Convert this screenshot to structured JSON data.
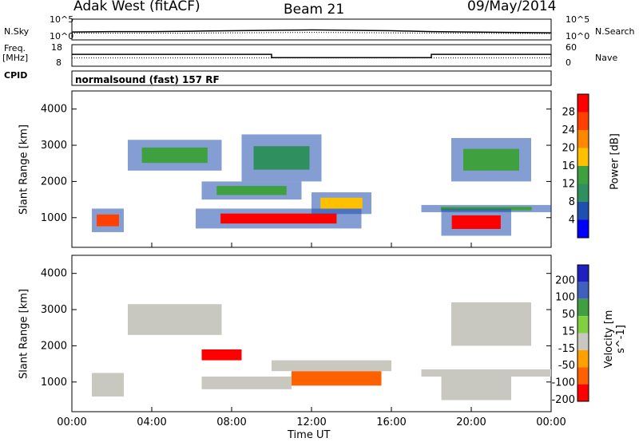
{
  "header": {
    "station": "Adak West (fitACF)",
    "beam": "Beam 21",
    "date": "09/May/2014"
  },
  "left_labels": {
    "nsky": "N.Sky",
    "freq": "Freq.",
    "freq_unit": "[MHz]",
    "cpid": "CPID"
  },
  "right_labels": {
    "nsearch": "N.Search",
    "nave": "Nave"
  },
  "noise_axis": {
    "left_top": "10^5",
    "left_bottom": "10^0",
    "right_top": "10^5",
    "right_bottom": "10^0"
  },
  "freq_axis": {
    "left_top": "18",
    "left_bottom": "8",
    "right_top": "60",
    "right_bottom": "0"
  },
  "cpid_text": "normalsound (fast) 157 RF",
  "x_axis": {
    "label": "Time UT",
    "ticks": [
      "00:00",
      "04:00",
      "08:00",
      "12:00",
      "16:00",
      "20:00",
      "00:00"
    ]
  },
  "colors": {
    "power": [
      "#0000ff",
      "#1f4fb0",
      "#2f8f5f",
      "#3fa03f",
      "#ffc000",
      "#ff8800",
      "#ff4000",
      "#ff0000"
    ],
    "velocity": [
      "#2020c0",
      "#4060c0",
      "#40a040",
      "#80d040",
      "#c8c8c0",
      "#ffa000",
      "#ff6000",
      "#ff0000"
    ]
  },
  "chart_data": [
    {
      "type": "line",
      "panel": "noise",
      "ylabel_left": "N.Sky",
      "ylabel_right": "N.Search",
      "x_unit": "hours UT",
      "xlim": [
        0,
        24
      ],
      "ylim": [
        0,
        5
      ],
      "series": [
        {
          "name": "N.Sky",
          "x": [
            0,
            2,
            4,
            6,
            8,
            10,
            12,
            14,
            16,
            18,
            20,
            22,
            24
          ],
          "values": [
            1.9,
            2.0,
            2.0,
            2.1,
            2.2,
            2.3,
            2.4,
            2.3,
            2.2,
            2.0,
            1.9,
            1.8,
            1.7
          ]
        },
        {
          "name": "N.Search",
          "x": [
            0,
            4,
            8,
            12,
            16,
            20,
            24
          ],
          "values": [
            1.6,
            1.6,
            1.7,
            1.8,
            1.7,
            1.6,
            1.5
          ]
        }
      ]
    },
    {
      "type": "line",
      "panel": "frequency",
      "ylabel_left": "Freq. [MHz]",
      "ylabel_right": "Nave",
      "x_unit": "hours UT",
      "xlim": [
        0,
        24
      ],
      "ylim_left": [
        8,
        18
      ],
      "ylim_right": [
        0,
        60
      ],
      "series": [
        {
          "name": "Freq.",
          "x": [
            0,
            10,
            10,
            18,
            18,
            24
          ],
          "values": [
            13.5,
            13.5,
            12.0,
            12.0,
            13.5,
            13.5
          ]
        },
        {
          "name": "Nave",
          "x": [
            0,
            24
          ],
          "values": [
            23,
            23
          ]
        }
      ]
    },
    {
      "type": "heatmap",
      "panel": "power",
      "xlabel": "",
      "ylabel": "Slant Range [km]",
      "colorbar_label": "Power [dB]",
      "colorbar_ticks": [
        4,
        8,
        12,
        16,
        20,
        24,
        28
      ],
      "xlim": [
        0,
        24
      ],
      "ylim": [
        180,
        4500
      ],
      "y_ticks": [
        1000,
        2000,
        3000,
        4000
      ],
      "regions": [
        {
          "t0": 1.0,
          "t1": 2.6,
          "r0": 600,
          "r1": 1250,
          "peak_dB": 26
        },
        {
          "t0": 2.8,
          "t1": 7.5,
          "r0": 2300,
          "r1": 3150,
          "peak_dB": 12
        },
        {
          "t0": 6.2,
          "t1": 14.5,
          "r0": 700,
          "r1": 1250,
          "peak_dB": 28
        },
        {
          "t0": 6.5,
          "t1": 11.5,
          "r0": 1500,
          "r1": 2000,
          "peak_dB": 14
        },
        {
          "t0": 8.5,
          "t1": 12.5,
          "r0": 2000,
          "r1": 3300,
          "peak_dB": 8
        },
        {
          "t0": 12.0,
          "t1": 15.0,
          "r0": 1100,
          "r1": 1700,
          "peak_dB": 16
        },
        {
          "t0": 17.5,
          "t1": 24.0,
          "r0": 1150,
          "r1": 1350,
          "peak_dB": 12
        },
        {
          "t0": 18.5,
          "t1": 22.0,
          "r0": 500,
          "r1": 1250,
          "peak_dB": 28
        },
        {
          "t0": 19.0,
          "t1": 23.0,
          "r0": 2000,
          "r1": 3200,
          "peak_dB": 12
        }
      ]
    },
    {
      "type": "heatmap",
      "panel": "velocity",
      "xlabel": "Time UT",
      "ylabel": "Slant Range [km]",
      "colorbar_label": "Velocity [m s^-1]",
      "colorbar_ticks": [
        200,
        100,
        50,
        15,
        -15,
        -50,
        -100,
        -200
      ],
      "xlim": [
        0,
        24
      ],
      "ylim": [
        180,
        4500
      ],
      "y_ticks": [
        1000,
        2000,
        3000,
        4000
      ],
      "regions": [
        {
          "t0": 1.0,
          "t1": 2.6,
          "r0": 600,
          "r1": 1250,
          "velocity": 0
        },
        {
          "t0": 2.8,
          "t1": 7.5,
          "r0": 2300,
          "r1": 3150,
          "velocity": 0
        },
        {
          "t0": 6.5,
          "t1": 8.5,
          "r0": 1600,
          "r1": 1900,
          "velocity": -150
        },
        {
          "t0": 6.5,
          "t1": 11.0,
          "r0": 800,
          "r1": 1150,
          "velocity": 0
        },
        {
          "t0": 11.0,
          "t1": 15.5,
          "r0": 900,
          "r1": 1300,
          "velocity": -60
        },
        {
          "t0": 10.0,
          "t1": 16.0,
          "r0": 1300,
          "r1": 1600,
          "velocity": 0
        },
        {
          "t0": 17.5,
          "t1": 24.0,
          "r0": 1150,
          "r1": 1350,
          "velocity": 0
        },
        {
          "t0": 18.5,
          "t1": 22.0,
          "r0": 500,
          "r1": 1250,
          "velocity": 0
        },
        {
          "t0": 19.0,
          "t1": 23.0,
          "r0": 2000,
          "r1": 3200,
          "velocity": 0
        }
      ]
    }
  ]
}
